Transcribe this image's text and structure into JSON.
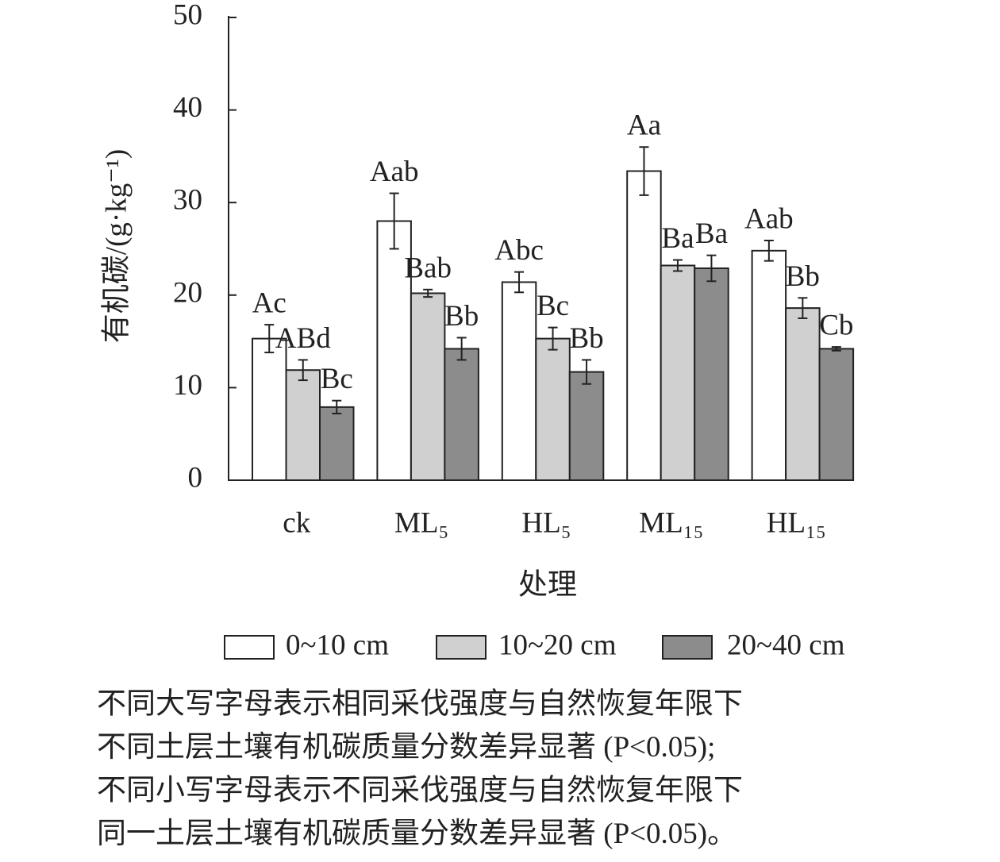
{
  "chart_data": {
    "type": "bar",
    "y_label": "有机碳/(g·kg⁻¹)",
    "x_label": "处理",
    "categories": [
      "ck",
      "ML₅",
      "HL₅",
      "ML₁₅",
      "HL₁₅"
    ],
    "series": [
      {
        "name": "0~10 cm",
        "color": "#ffffff",
        "values": [
          15.3,
          28.0,
          21.4,
          33.4,
          24.8
        ],
        "errors": [
          1.5,
          3.0,
          1.1,
          2.6,
          1.1
        ],
        "labels": [
          "Ac",
          "Aab",
          "Abc",
          "Aa",
          "Aab"
        ]
      },
      {
        "name": "10~20 cm",
        "color": "#d0d0d0",
        "values": [
          11.9,
          20.2,
          15.3,
          23.2,
          18.6
        ],
        "errors": [
          1.1,
          0.4,
          1.2,
          0.6,
          1.1
        ],
        "labels": [
          "ABd",
          "Bab",
          "Bc",
          "Ba",
          "Bb"
        ]
      },
      {
        "name": "20~40 cm",
        "color": "#8c8c8c",
        "values": [
          7.9,
          14.2,
          11.7,
          22.9,
          14.2
        ],
        "errors": [
          0.7,
          1.2,
          1.3,
          1.4,
          0.2
        ],
        "labels": [
          "Bc",
          "Bb",
          "Bb",
          "Ba",
          "Cb"
        ]
      }
    ],
    "ylim": [
      0,
      50
    ],
    "yticks": [
      0,
      10,
      20,
      30,
      40,
      50
    ],
    "note": [
      "不同大写字母表示相同采伐强度与自然恢复年限下",
      "不同土层土壤有机碳质量分数差异显著 (P<0.05);",
      "不同小写字母表示不同采伐强度与自然恢复年限下",
      "同一土层土壤有机碳质量分数差异显著 (P<0.05)。"
    ]
  }
}
